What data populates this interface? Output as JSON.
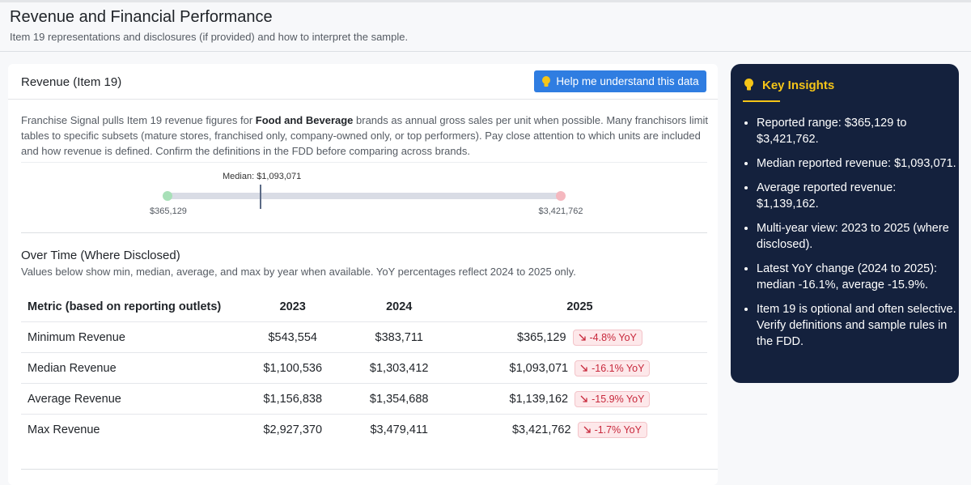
{
  "header": {
    "title": "Revenue and Financial Performance",
    "subtitle": "Item 19 representations and disclosures (if provided) and how to interpret the sample."
  },
  "card": {
    "title": "Revenue (Item 19)",
    "button": "Help me understand this data",
    "intro": {
      "before": "Franchise Signal pulls Item 19 revenue figures for ",
      "bold": "Food and Beverage",
      "after": " brands as annual gross sales per unit when possible. Many franchisors limit tables to specific subsets (mature stores, franchised only, company-owned only, or top performers). Pay close attention to which units are included and how revenue is defined. Confirm the definitions in the FDD before comparing across brands."
    },
    "range": {
      "median_label": "Median: $1,093,071",
      "min_label": "$365,129",
      "max_label": "$3,421,762"
    }
  },
  "over_time": {
    "title": "Over Time (Where Disclosed)",
    "note": "Values below show min, median, average, and max by year when available. YoY percentages reflect 2024 to 2025 only.",
    "table": {
      "headers": [
        "Metric (based on reporting outlets)",
        "2023",
        "2024",
        "2025"
      ],
      "rows": [
        [
          "Minimum Revenue",
          "$543,554",
          "$383,711",
          "$365,129",
          "-4.8% YoY"
        ],
        [
          "Median Revenue",
          "$1,100,536",
          "$1,303,412",
          "$1,093,071",
          "-16.1% YoY"
        ],
        [
          "Average Revenue",
          "$1,156,838",
          "$1,354,688",
          "$1,139,162",
          "-15.9% YoY"
        ],
        [
          "Max Revenue",
          "$2,927,370",
          "$3,479,411",
          "$3,421,762",
          "-1.7% YoY"
        ]
      ]
    }
  },
  "insights": {
    "title": "Key Insights",
    "items": [
      "Reported range: $365,129 to $3,421,762.",
      "Median reported revenue: $1,093,071.",
      "Average reported revenue: $1,139,162.",
      "Multi-year view: 2023 to 2025 (where disclosed).",
      "Latest YoY change (2024 to 2025): median -16.1%, average -15.9%.",
      "Item 19 is optional and often selective. Verify definitions and sample rules in the FDD."
    ]
  }
}
